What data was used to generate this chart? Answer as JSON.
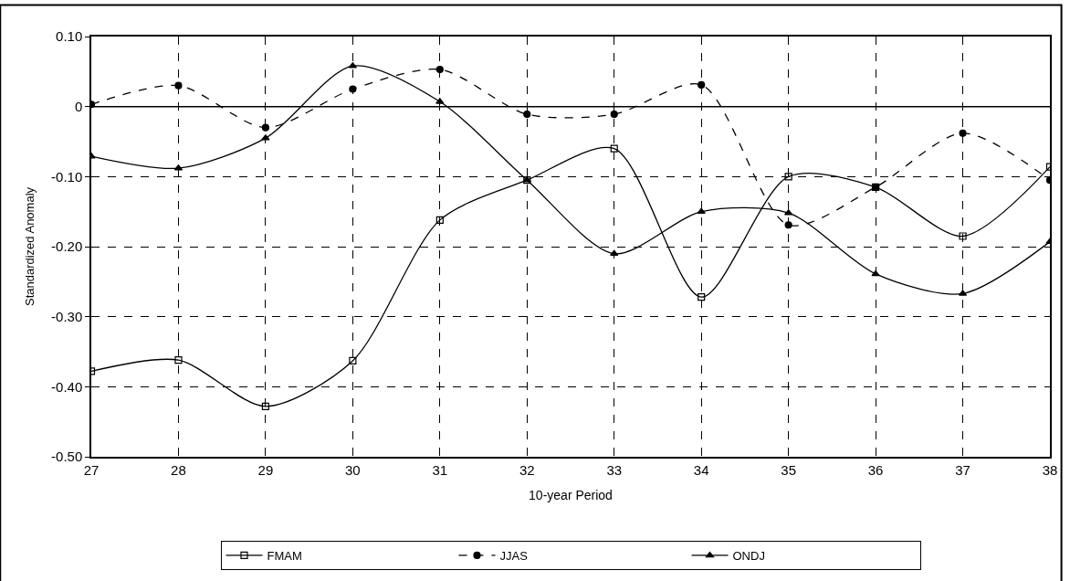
{
  "chart_data": {
    "type": "line",
    "xlabel": "10-year Period",
    "ylabel": "Standardized Anomaly",
    "x": [
      27,
      28,
      29,
      30,
      31,
      32,
      33,
      34,
      35,
      36,
      37,
      38
    ],
    "series": [
      {
        "name": "FMAM",
        "color": "#000000",
        "marker": "square",
        "line_style": "solid",
        "values": [
          -0.378,
          -0.362,
          -0.428,
          -0.363,
          -0.162,
          -0.105,
          -0.06,
          -0.272,
          -0.1,
          -0.115,
          -0.185,
          -0.086
        ]
      },
      {
        "name": "JJAS",
        "color": "#000000",
        "marker": "circle",
        "line_style": "dashed",
        "values": [
          0.003,
          0.03,
          -0.03,
          0.025,
          0.053,
          -0.011,
          -0.011,
          0.031,
          -0.169,
          -0.115,
          -0.038,
          -0.105
        ]
      },
      {
        "name": "ONDJ",
        "color": "#000000",
        "marker": "triangle",
        "line_style": "solid",
        "values": [
          -0.071,
          -0.088,
          -0.045,
          0.058,
          0.007,
          -0.105,
          -0.21,
          -0.15,
          -0.152,
          -0.239,
          -0.267,
          -0.193
        ]
      }
    ],
    "xlim": [
      27,
      38
    ],
    "xticks": [
      27,
      28,
      29,
      30,
      31,
      32,
      33,
      34,
      35,
      36,
      37,
      38
    ],
    "ylim": [
      -0.5,
      0.1
    ],
    "yticks": [
      {
        "value": 0.1,
        "label": "0.10"
      },
      0,
      {
        "value": -0.1,
        "label": "-0.10"
      },
      {
        "value": -0.2,
        "label": "-0.20"
      },
      {
        "value": -0.3,
        "label": "-0.30"
      },
      {
        "value": -0.4,
        "label": "-0.40"
      },
      {
        "value": -0.5,
        "label": "-0.50"
      }
    ],
    "ref_lines": [
      {
        "axis": "y",
        "value": 0,
        "color": "#000000",
        "line_style": "solid"
      }
    ],
    "grid": true,
    "legend": "bottom"
  }
}
